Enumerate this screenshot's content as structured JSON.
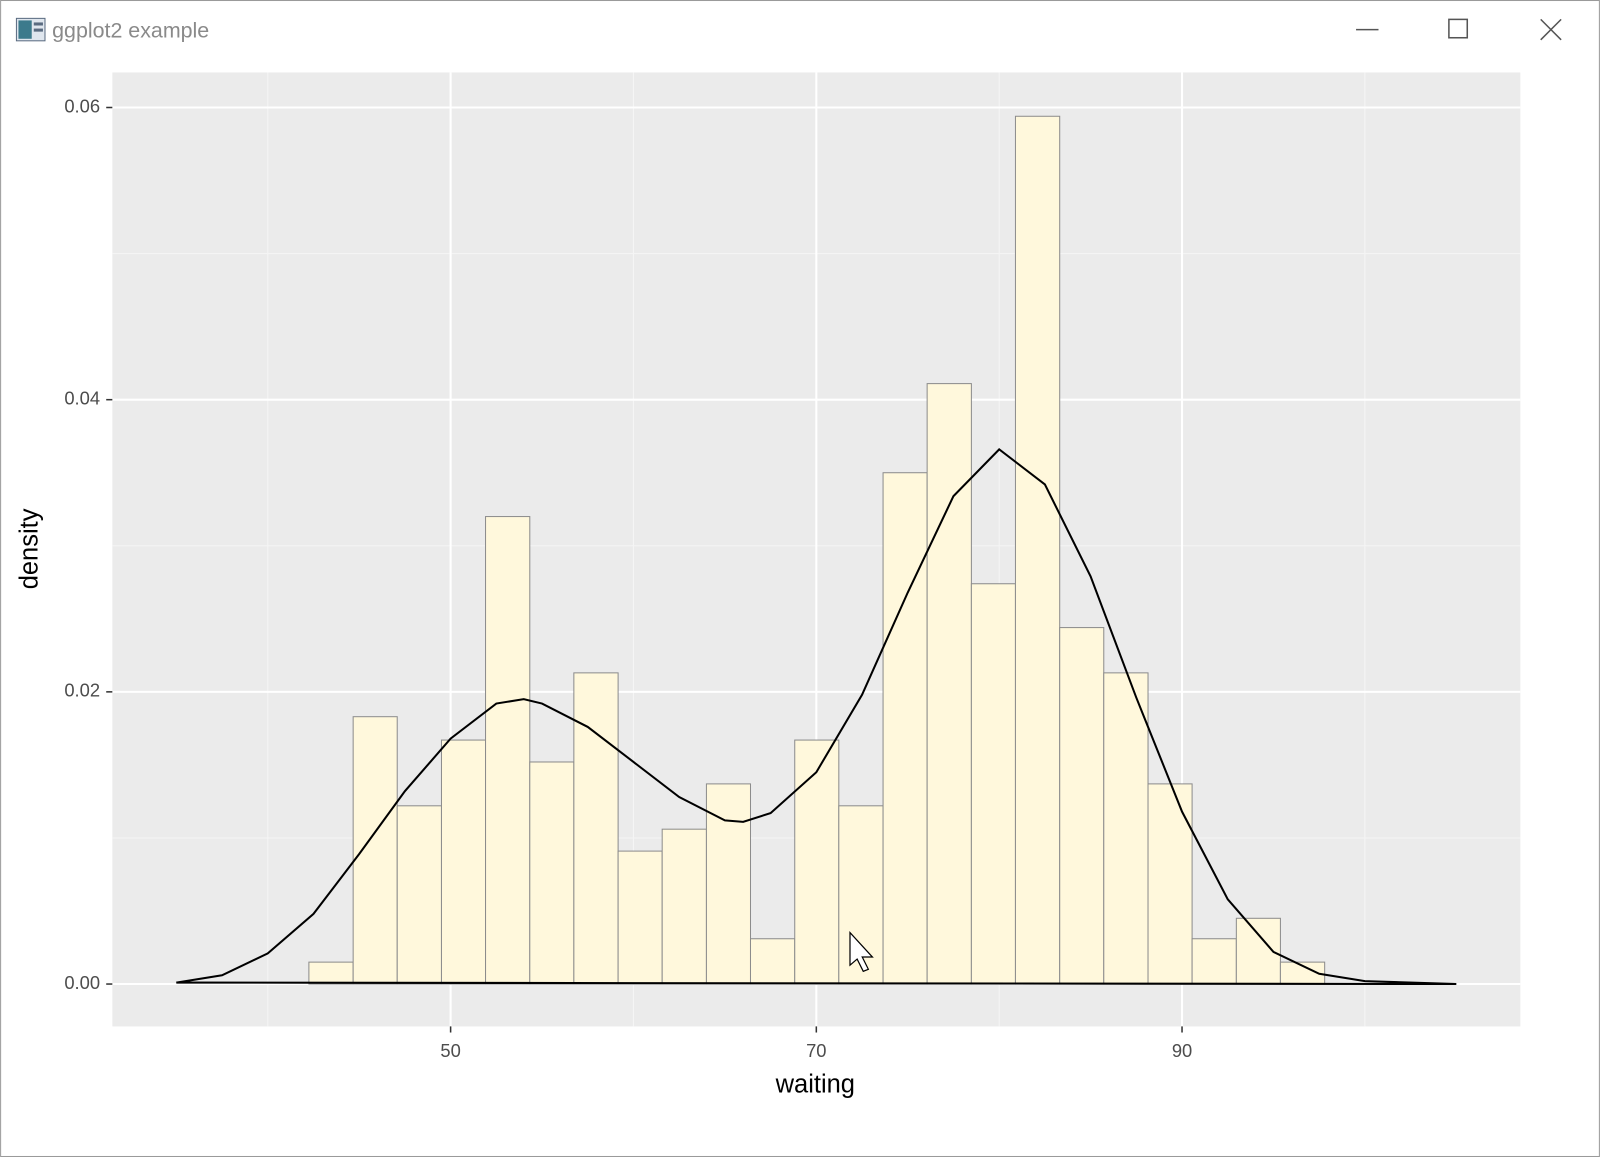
{
  "window": {
    "title": "ggplot2 example"
  },
  "chart_data": {
    "type": "histogram",
    "x_label": "waiting",
    "y_label": "density",
    "bins": [
      42.25,
      44.67,
      47.08,
      49.5,
      51.91,
      54.33,
      56.74,
      59.16,
      61.57,
      63.99,
      66.4,
      68.82,
      71.23,
      73.65,
      76.06,
      78.48,
      80.89,
      83.31,
      85.72,
      88.14,
      90.55,
      92.97,
      95.38,
      97.8
    ],
    "values": [
      0.0015,
      0.0183,
      0.0122,
      0.0167,
      0.032,
      0.0152,
      0.0213,
      0.0091,
      0.0106,
      0.0137,
      0.0031,
      0.0167,
      0.0122,
      0.035,
      0.0411,
      0.0274,
      0.0594,
      0.0244,
      0.0213,
      0.0137,
      0.0031,
      0.0045,
      0.0015
    ],
    "color": "#fff8dc",
    "edge_color": "#8c8c8c",
    "density": {
      "color": "#000000",
      "x": [
        35,
        37.5,
        40,
        42.5,
        45,
        47.5,
        50,
        52.5,
        54,
        55,
        57.5,
        60,
        62.5,
        65,
        66,
        67.5,
        70,
        72.5,
        75,
        77.5,
        80,
        82.5,
        85,
        87.5,
        90,
        92.5,
        95,
        97.5,
        100,
        105
      ],
      "values": [
        0.0001,
        0.0006,
        0.0021,
        0.0048,
        0.0089,
        0.0132,
        0.0168,
        0.0192,
        0.0195,
        0.0192,
        0.0176,
        0.0152,
        0.0128,
        0.0112,
        0.0111,
        0.0117,
        0.0145,
        0.0198,
        0.0268,
        0.0334,
        0.0366,
        0.0342,
        0.0279,
        0.0196,
        0.0118,
        0.0058,
        0.0022,
        0.0007,
        0.0002,
        0
      ]
    },
    "xlim": [
      31.5,
      108.5
    ],
    "ylim": [
      -0.0029,
      0.0624
    ],
    "xticks": [
      50,
      70,
      90
    ],
    "xminor": [
      40,
      60,
      80,
      100
    ],
    "yticks": [
      {
        "value": 0,
        "label": "0.00"
      },
      0.02,
      0.04,
      0.06
    ],
    "yminor": [
      0.01,
      0.03,
      0.05
    ],
    "grid": true
  }
}
